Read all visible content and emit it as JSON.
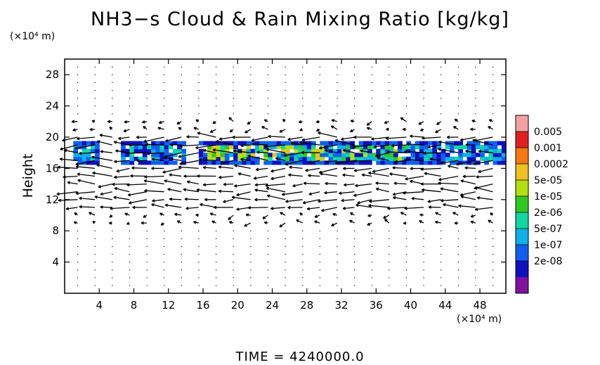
{
  "chart_data": {
    "type": "heatmap",
    "title": "NH3−s Cloud & Rain Mixing Ratio [kg/kg]",
    "ylabel": "Height",
    "y_unit": "(×10⁴ m)",
    "x_unit": "(×10⁴ m)",
    "footer": "TIME  =  4240000.0",
    "xlim": [
      0,
      51
    ],
    "ylim": [
      0,
      30
    ],
    "xticks": [
      4,
      8,
      12,
      16,
      20,
      24,
      28,
      32,
      36,
      40,
      44,
      48
    ],
    "yticks": [
      4,
      8,
      12,
      16,
      20,
      24,
      28
    ],
    "colorbar": {
      "labels": [
        "0.005",
        "0.001",
        "0.0002",
        "5e-05",
        "1e-05",
        "2e-06",
        "5e-07",
        "1e-07",
        "2e-08"
      ],
      "colors": [
        "#f5a0a0",
        "#e02020",
        "#f57810",
        "#f0c020",
        "#b0e010",
        "#30c820",
        "#10d8a0",
        "#10b0e8",
        "#1060f0",
        "#1010c0",
        "#8010a0"
      ]
    },
    "cloud_band": {
      "y_range": [
        16.5,
        19.5
      ],
      "x_range": [
        1,
        51
      ],
      "dominant_levels": [
        "1e-07",
        "5e-07",
        "2e-06",
        "1e-05",
        "5e-05"
      ]
    }
  }
}
